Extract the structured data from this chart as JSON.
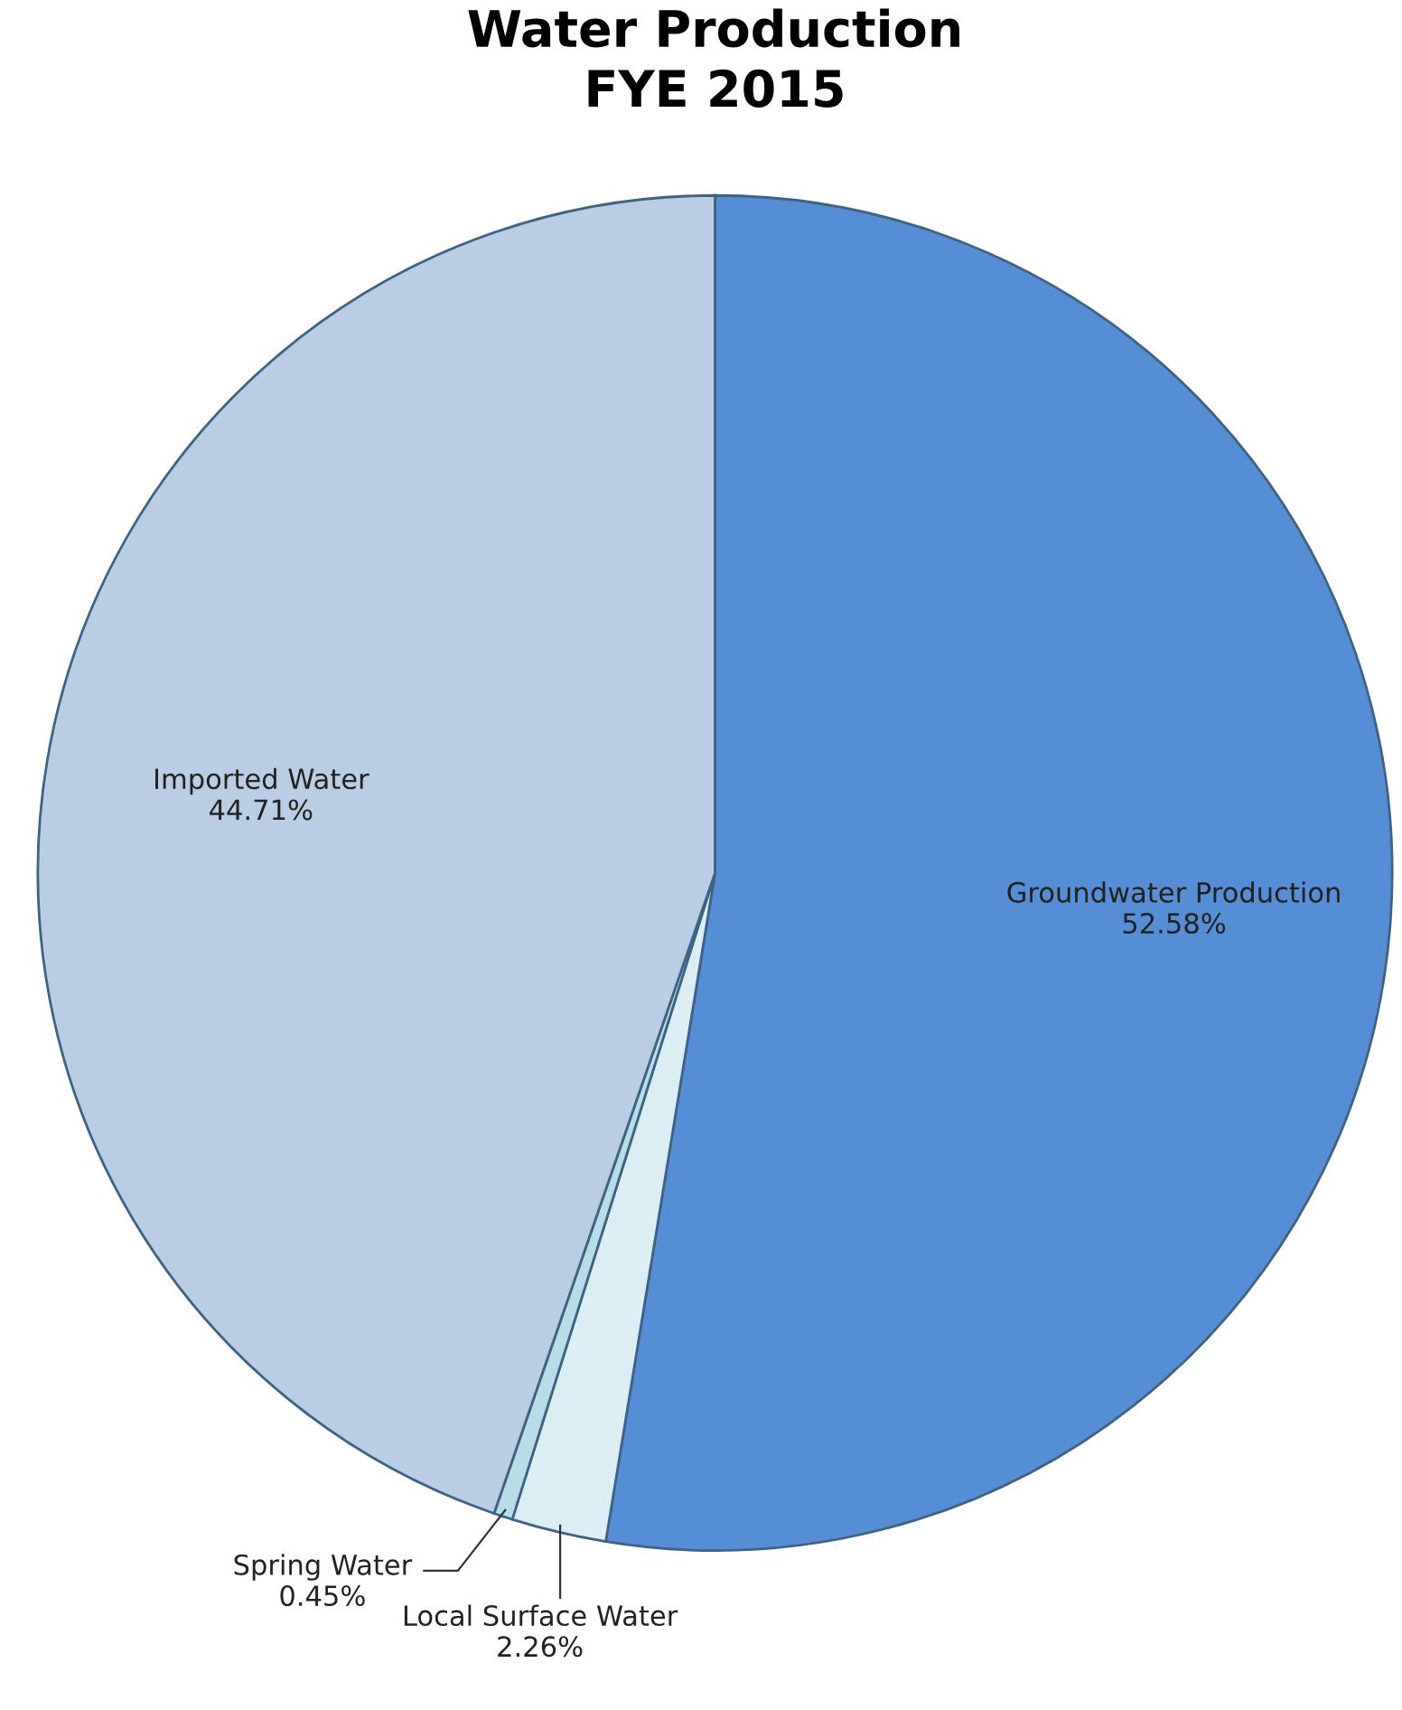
{
  "chart_data": {
    "type": "pie",
    "title": "Water Production\nFYE 2015",
    "categories": [
      "Groundwater Production",
      "Local Surface Water",
      "Spring Water",
      "Imported Water"
    ],
    "values": [
      52.58,
      2.26,
      0.45,
      44.71
    ],
    "value_labels": [
      "52.58%",
      "2.26%",
      "0.45%",
      "44.71%"
    ],
    "colors": [
      "#558ed5",
      "#dbeef4",
      "#b7dee8",
      "#b9cde5"
    ],
    "legend": false
  }
}
